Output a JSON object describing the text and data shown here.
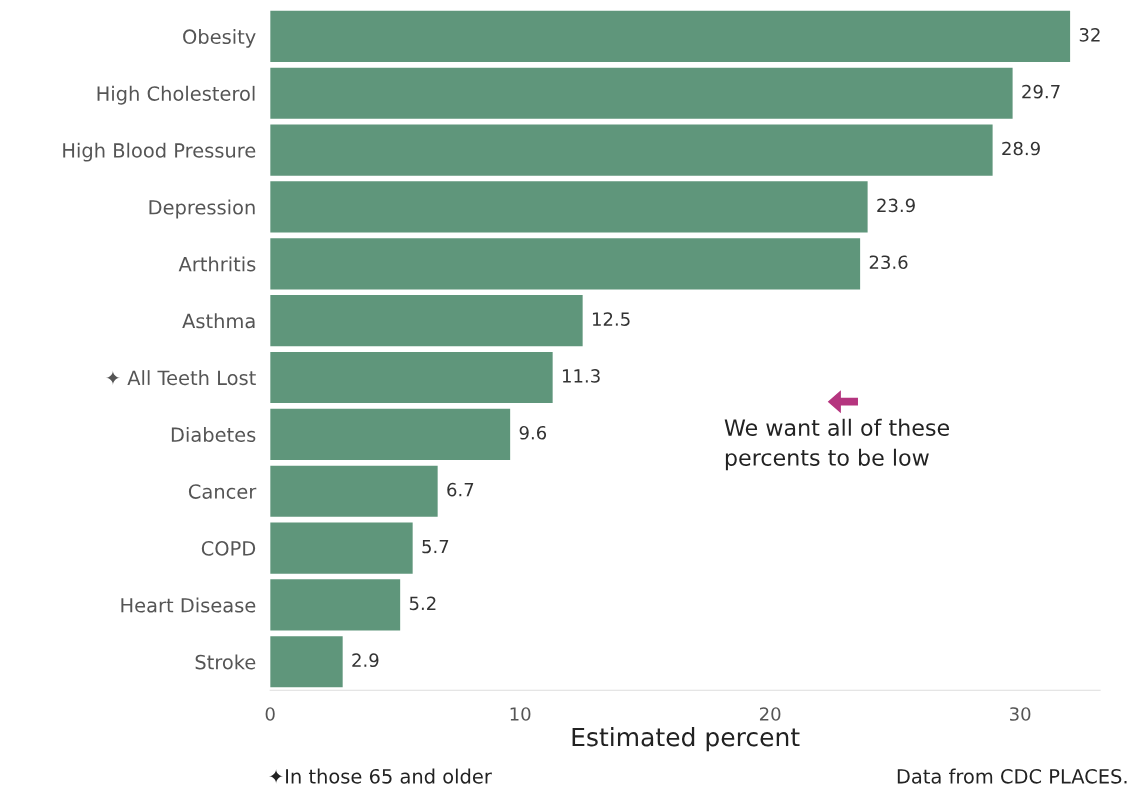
{
  "chart_data": {
    "type": "bar",
    "orientation": "horizontal",
    "xlabel": "Estimated percent",
    "categories": [
      "Obesity",
      "High Cholesterol",
      "High Blood Pressure",
      "Depression",
      "Arthritis",
      "Asthma",
      "✦ All Teeth Lost",
      "Diabetes",
      "Cancer",
      "COPD",
      "Heart Disease",
      "Stroke"
    ],
    "values": [
      32,
      29.7,
      28.9,
      23.9,
      23.6,
      12.5,
      11.3,
      9.6,
      6.7,
      5.7,
      5.2,
      2.9
    ],
    "color": "#5f967b",
    "data_labels": true,
    "grid": false,
    "legend": false,
    "xlim": [
      0,
      33.2
    ],
    "xticks": [
      0,
      10,
      20,
      30
    ],
    "annotations": [
      "We want all of these\npercents to be low",
      "✦In those 65 and older",
      "Data from CDC PLACES."
    ]
  }
}
